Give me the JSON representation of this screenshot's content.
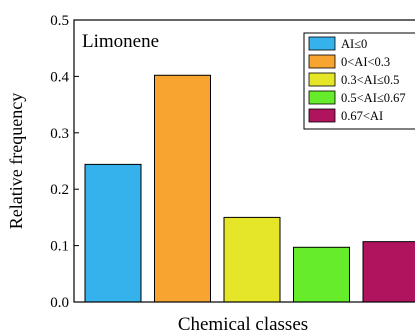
{
  "chart_data": {
    "type": "bar",
    "annotation": "Limonene",
    "xlabel": "Chemical classes",
    "ylabel": "Relative frequency",
    "ylim": [
      0,
      0.5
    ],
    "yticks": [
      0.0,
      0.1,
      0.2,
      0.3,
      0.4,
      0.5
    ],
    "grid": false,
    "legend_position": "top-right",
    "categories": [
      "AI≤0",
      "0<AI<0.3",
      "0.3<AI≤0.5",
      "0.5<AI≤0.67",
      "0.67<AI"
    ],
    "values": [
      0.244,
      0.402,
      0.15,
      0.097,
      0.107
    ],
    "colors": [
      "#35b2ec",
      "#f8a431",
      "#e6e629",
      "#66ec2a",
      "#b0145f"
    ]
  }
}
